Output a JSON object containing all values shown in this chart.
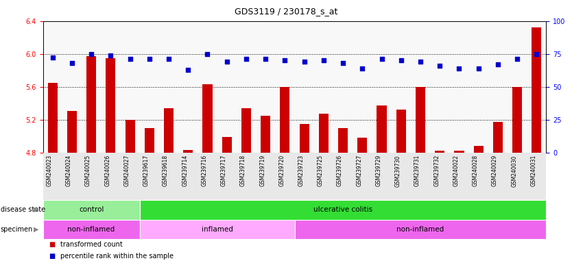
{
  "title": "GDS3119 / 230178_s_at",
  "samples": [
    "GSM240023",
    "GSM240024",
    "GSM240025",
    "GSM240026",
    "GSM240027",
    "GSM239617",
    "GSM239618",
    "GSM239714",
    "GSM239716",
    "GSM239717",
    "GSM239718",
    "GSM239719",
    "GSM239720",
    "GSM239723",
    "GSM239725",
    "GSM239726",
    "GSM239727",
    "GSM239729",
    "GSM239730",
    "GSM239731",
    "GSM239732",
    "GSM240022",
    "GSM240028",
    "GSM240029",
    "GSM240030",
    "GSM240031"
  ],
  "bar_values": [
    5.65,
    5.31,
    5.97,
    5.95,
    5.2,
    5.1,
    5.34,
    4.83,
    5.63,
    4.99,
    5.34,
    5.25,
    5.6,
    5.15,
    5.27,
    5.1,
    4.98,
    5.37,
    5.32,
    5.6,
    4.82,
    4.82,
    4.88,
    5.17,
    5.6,
    6.32
  ],
  "dot_values": [
    72,
    68,
    75,
    74,
    71,
    71,
    71,
    63,
    75,
    69,
    71,
    71,
    70,
    69,
    70,
    68,
    64,
    71,
    70,
    69,
    66,
    64,
    64,
    67,
    71,
    75
  ],
  "bar_color": "#cc0000",
  "dot_color": "#0000cc",
  "ylim_left": [
    4.8,
    6.4
  ],
  "ylim_right": [
    0,
    100
  ],
  "yticks_left": [
    4.8,
    5.2,
    5.6,
    6.0,
    6.4
  ],
  "yticks_right": [
    0,
    25,
    50,
    75,
    100
  ],
  "grid_lines": [
    5.2,
    5.6,
    6.0
  ],
  "disease_state_groups": [
    {
      "label": "control",
      "start": 0,
      "end": 5,
      "color": "#99ee99"
    },
    {
      "label": "ulcerative colitis",
      "start": 5,
      "end": 26,
      "color": "#33dd33"
    }
  ],
  "specimen_groups": [
    {
      "label": "non-inflamed",
      "start": 0,
      "end": 5,
      "color": "#ee66ee"
    },
    {
      "label": "inflamed",
      "start": 5,
      "end": 13,
      "color": "#ffaaff"
    },
    {
      "label": "non-inflamed",
      "start": 13,
      "end": 26,
      "color": "#ee66ee"
    }
  ],
  "legend_bar_label": "transformed count",
  "legend_dot_label": "percentile rank within the sample",
  "disease_state_label": "disease state",
  "specimen_label": "specimen"
}
